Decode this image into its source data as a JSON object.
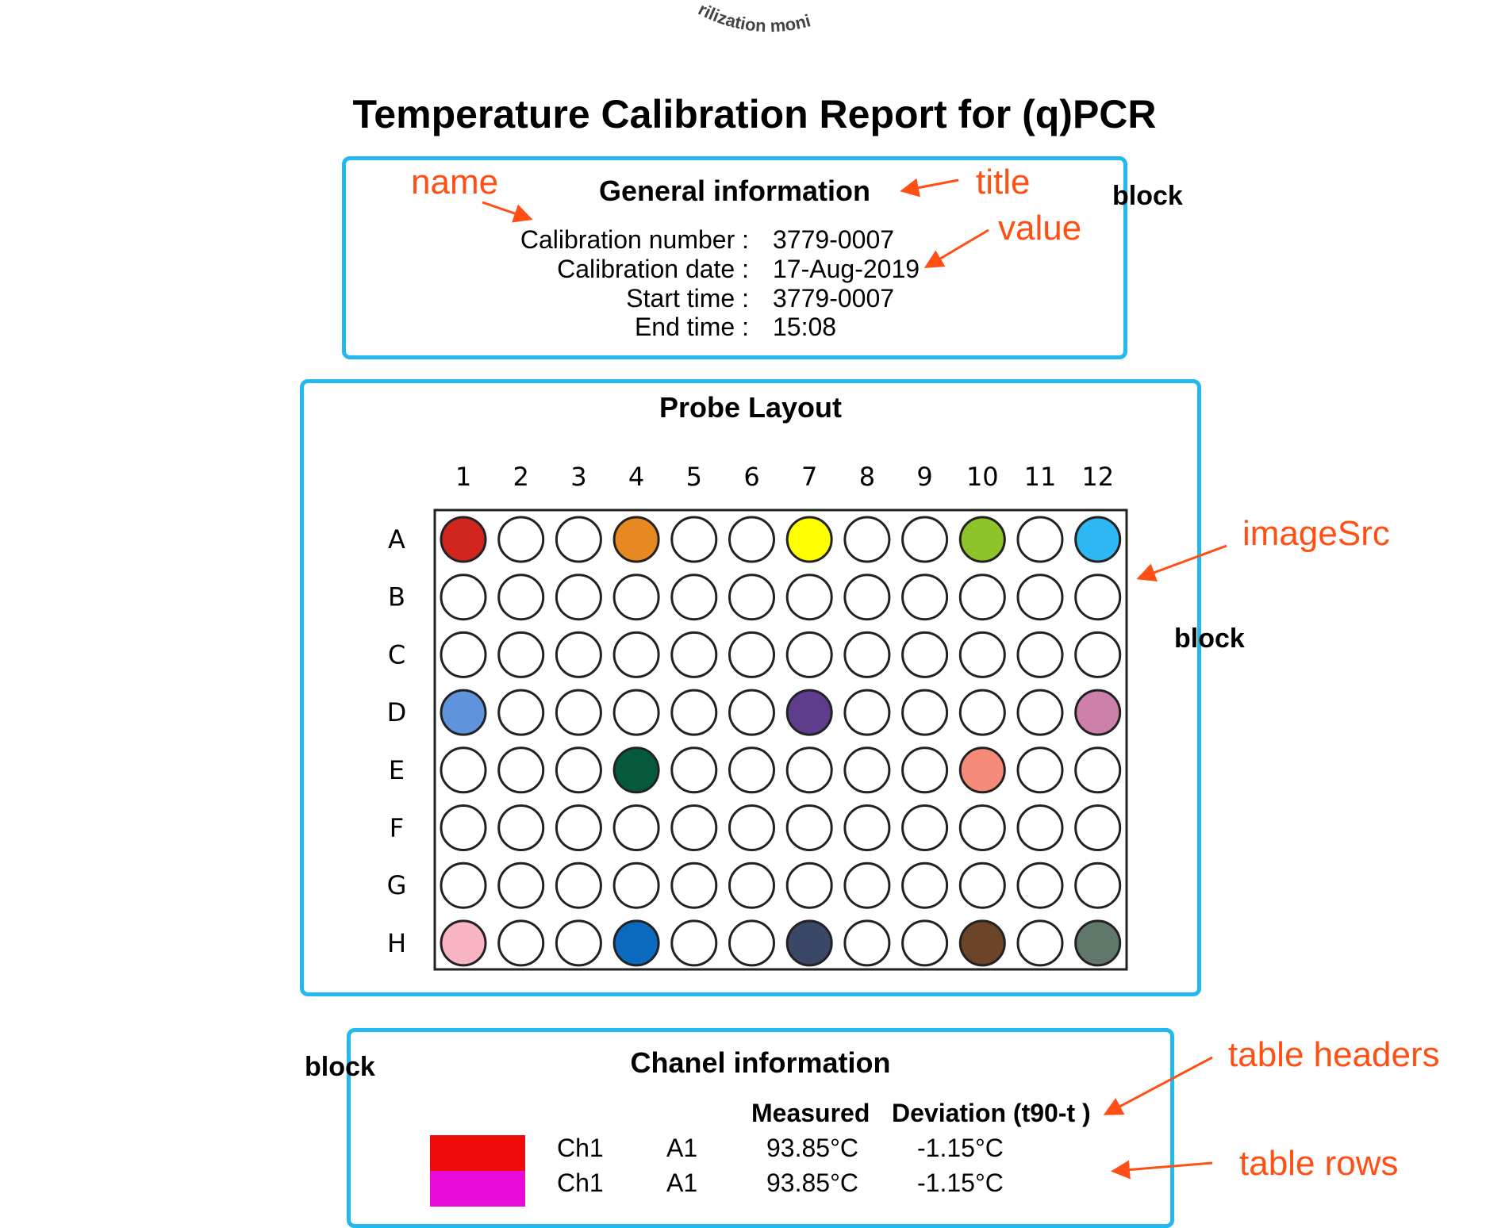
{
  "logo": {
    "arc_text": "rilization moni"
  },
  "report_title": "Temperature Calibration Report for (q)PCR",
  "general": {
    "title": "General information",
    "rows": [
      {
        "name": "Calibration number :",
        "value": "3779-0007"
      },
      {
        "name": "Calibration date :",
        "value": "17-Aug-2019"
      },
      {
        "name": "Start time :",
        "value": "3779-0007"
      },
      {
        "name": "End time :",
        "value": "15:08"
      }
    ]
  },
  "probe": {
    "title": "Probe Layout",
    "columns": [
      "1",
      "2",
      "3",
      "4",
      "5",
      "6",
      "7",
      "8",
      "9",
      "10",
      "11",
      "12"
    ],
    "rows": [
      "A",
      "B",
      "C",
      "D",
      "E",
      "F",
      "G",
      "H"
    ],
    "wells": [
      {
        "well": "A1",
        "color": "#d0261f"
      },
      {
        "well": "A4",
        "color": "#e88820"
      },
      {
        "well": "A7",
        "color": "#ffff00"
      },
      {
        "well": "A10",
        "color": "#8dc42a"
      },
      {
        "well": "A12",
        "color": "#2db8f4"
      },
      {
        "well": "D1",
        "color": "#5f94dc"
      },
      {
        "well": "D7",
        "color": "#5e3d8c"
      },
      {
        "well": "D12",
        "color": "#cc80aa"
      },
      {
        "well": "E4",
        "color": "#065a3c"
      },
      {
        "well": "E10",
        "color": "#f58a78"
      },
      {
        "well": "H1",
        "color": "#f8b4c2"
      },
      {
        "well": "H4",
        "color": "#0a6abf"
      },
      {
        "well": "H7",
        "color": "#3a4766"
      },
      {
        "well": "H10",
        "color": "#6c4428"
      },
      {
        "well": "H12",
        "color": "#5f786a"
      }
    ]
  },
  "channel": {
    "title": "Chanel information",
    "headers": {
      "measured": "Measured",
      "deviation": "Deviation (t90-t )"
    },
    "rows": [
      {
        "color": "#f00a0a",
        "channel": "Ch1",
        "well": "A1",
        "measured": "93.85°C",
        "deviation": "-1.15°C"
      },
      {
        "color": "#e80ad8",
        "channel": "Ch1",
        "well": "A1",
        "measured": "93.85°C",
        "deviation": "-1.15°C"
      }
    ]
  },
  "annotations": {
    "name": "name",
    "title": "title",
    "value": "value",
    "image_src": "imageSrc",
    "table_headers": "table headers",
    "table_rows": "table rows",
    "block": "block"
  },
  "colors": {
    "block_border": "#22b8f0",
    "annotation": "#ff4f14"
  }
}
